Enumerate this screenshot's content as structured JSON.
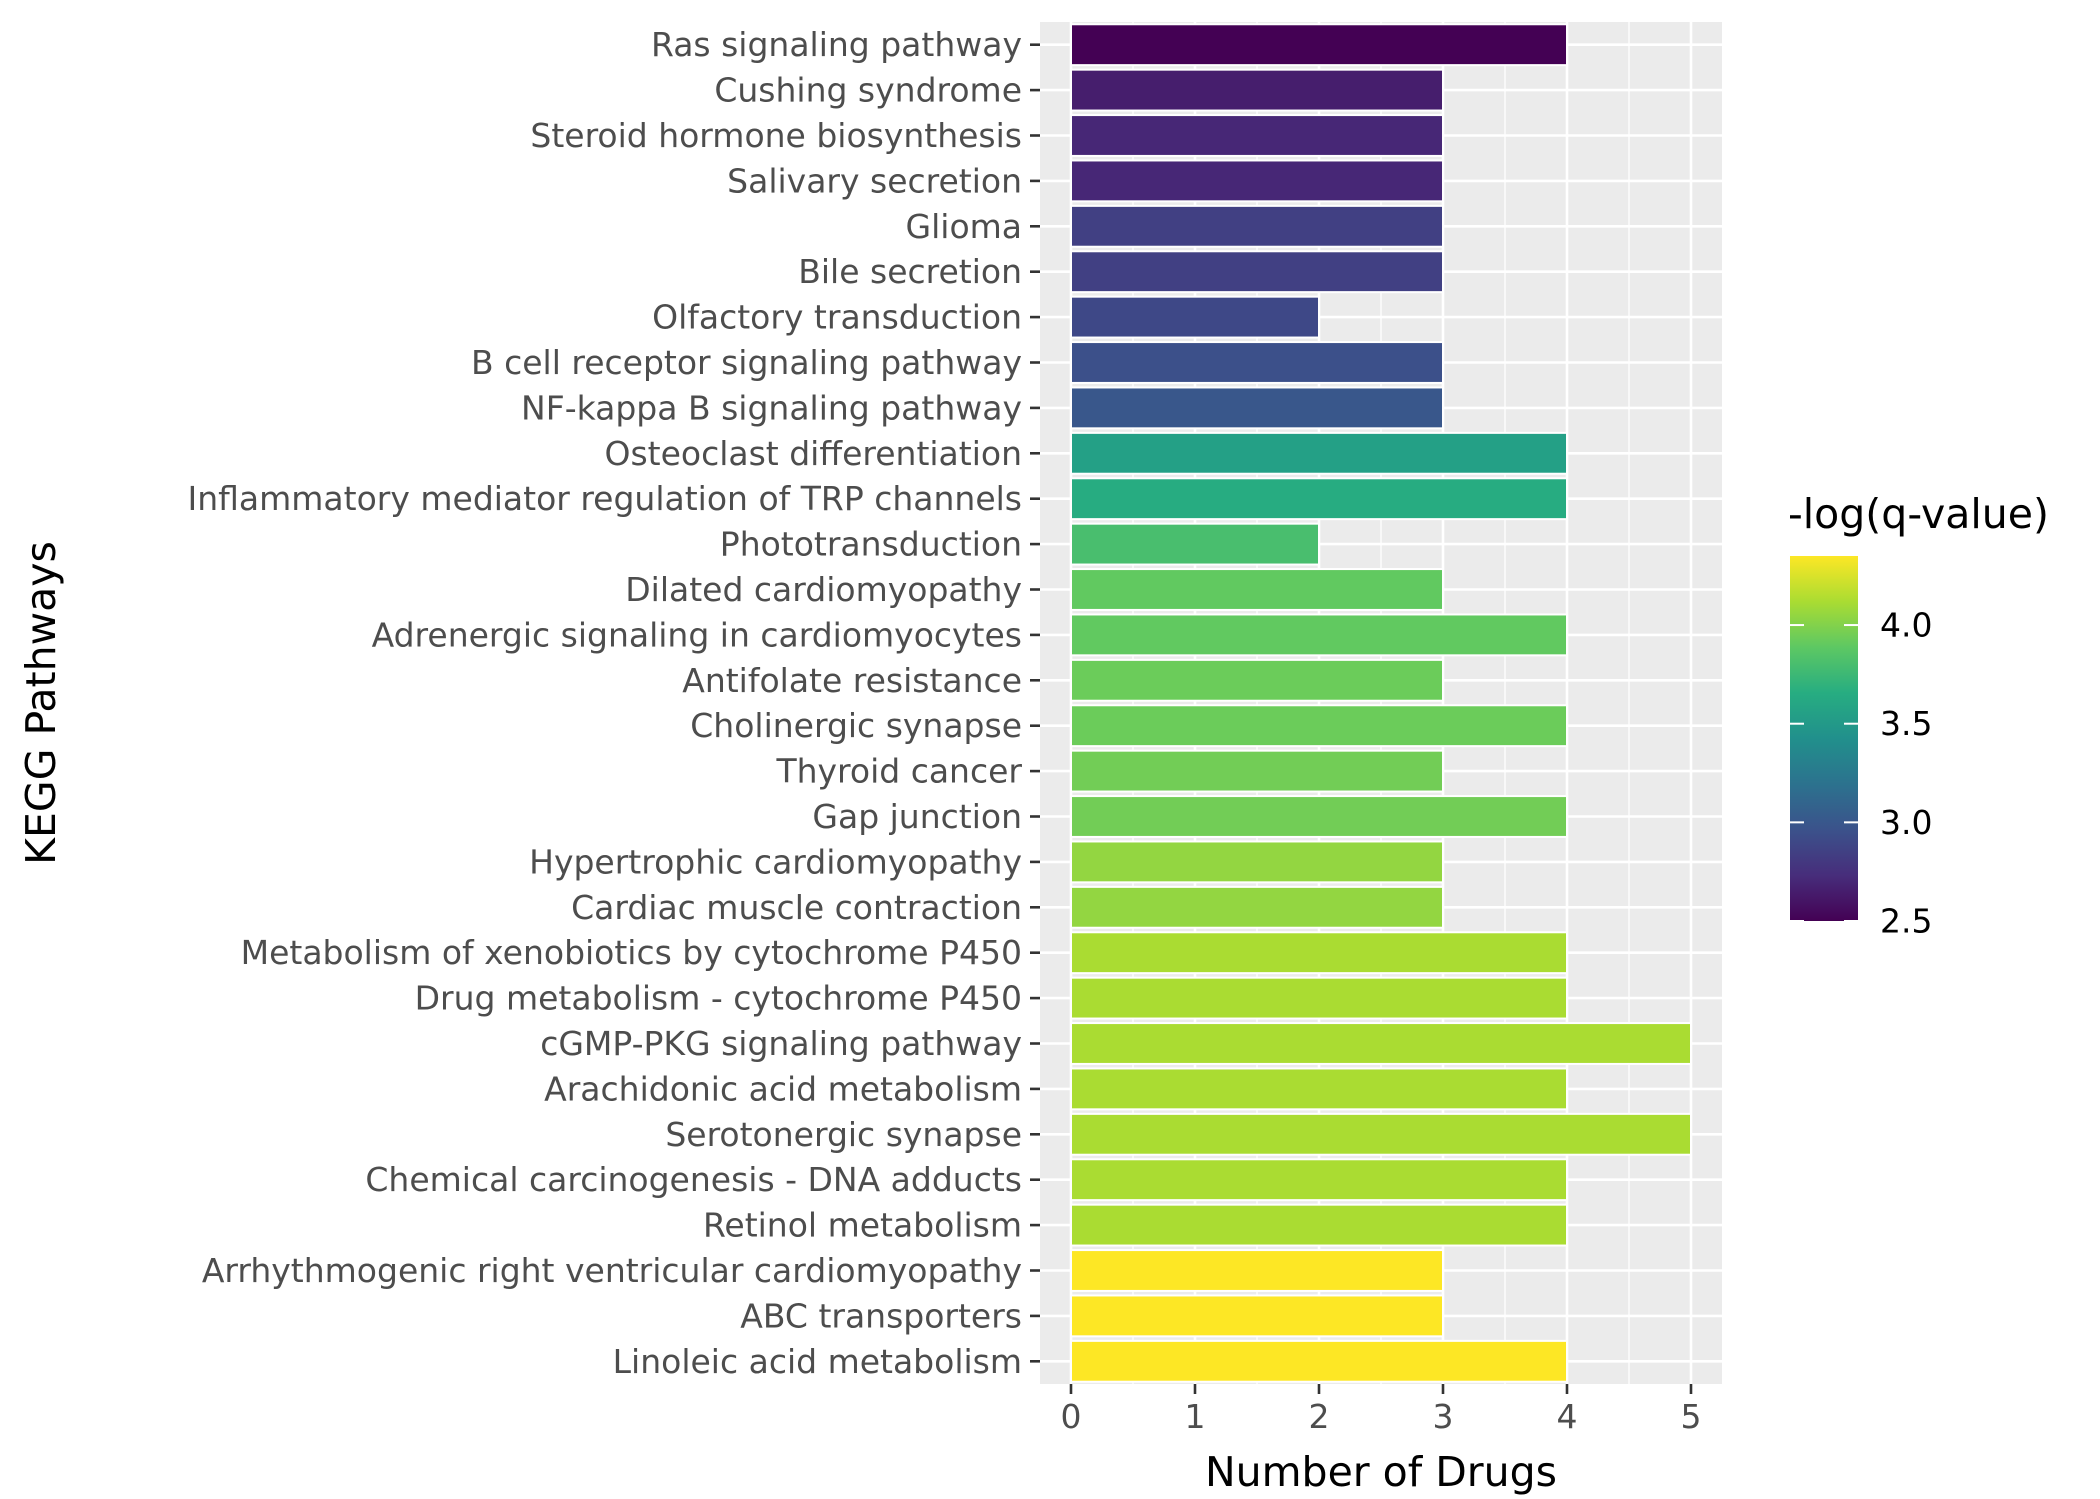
{
  "chart_data": {
    "type": "bar",
    "orientation": "horizontal",
    "xlabel": "Number of Drugs",
    "ylabel": "KEGG Pathways",
    "xlim": [
      -0.25,
      5.25
    ],
    "x_ticks": [
      0,
      1,
      2,
      3,
      4,
      5
    ],
    "grid": true,
    "legend": {
      "title": "-log(q-value)",
      "placement": "right",
      "ticks": [
        2.5,
        3.0,
        3.5,
        4.0
      ],
      "tick_labels": [
        "2.5",
        "3.0",
        "3.5",
        "4.0"
      ],
      "range": [
        2.5,
        4.35
      ],
      "palette": "viridis"
    },
    "categories": [
      "Ras signaling pathway",
      "Cushing syndrome",
      "Steroid hormone biosynthesis",
      "Salivary secretion",
      "Glioma",
      "Bile secretion",
      "Olfactory transduction",
      "B cell receptor signaling pathway",
      "NF-kappa B signaling pathway",
      "Osteoclast differentiation",
      "Inflammatory mediator regulation of TRP channels",
      "Phototransduction",
      "Dilated cardiomyopathy",
      "Adrenergic signaling in cardiomyocytes",
      "Antifolate resistance",
      "Cholinergic synapse",
      "Thyroid cancer",
      "Gap junction",
      "Hypertrophic cardiomyopathy",
      "Cardiac muscle contraction",
      "Metabolism of xenobiotics by cytochrome P450",
      "Drug metabolism - cytochrome P450",
      "cGMP-PKG signaling pathway",
      "Arachidonic acid metabolism",
      "Serotonergic synapse",
      "Chemical carcinogenesis - DNA adducts",
      "Retinol metabolism",
      "Arrhythmogenic right ventricular cardiomyopathy",
      "ABC transporters",
      "Linoleic acid metabolism"
    ],
    "values": [
      4,
      3,
      3,
      3,
      3,
      3,
      2,
      3,
      3,
      4,
      4,
      2,
      3,
      4,
      3,
      4,
      3,
      4,
      3,
      3,
      4,
      4,
      5,
      4,
      5,
      4,
      4,
      3,
      3,
      4
    ],
    "color_values": [
      2.5,
      2.65,
      2.7,
      2.7,
      2.85,
      2.85,
      2.9,
      2.95,
      3.0,
      3.55,
      3.65,
      3.8,
      3.9,
      3.9,
      3.93,
      3.93,
      3.95,
      3.95,
      4.05,
      4.05,
      4.12,
      4.12,
      4.12,
      4.12,
      4.12,
      4.12,
      4.12,
      4.35,
      4.35,
      4.35
    ]
  }
}
